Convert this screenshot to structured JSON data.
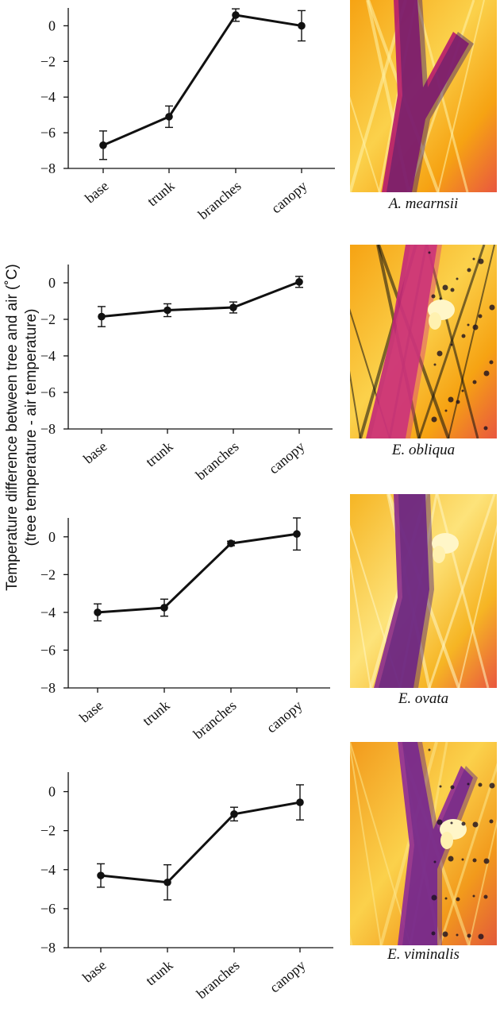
{
  "figure": {
    "ylabel_line1": "Temperature difference between tree and air (˚C)",
    "ylabel_line2": "(tree temperature - air temperature)"
  },
  "chart_data": [
    {
      "type": "line",
      "species": "A. mearnsii",
      "categories": [
        "base",
        "trunk",
        "branches",
        "canopy"
      ],
      "values": [
        -6.7,
        -5.1,
        0.6,
        0.0
      ],
      "error": [
        0.8,
        0.6,
        0.35,
        0.85
      ],
      "ylim": [
        -8,
        1
      ],
      "yticks": [
        0,
        -2,
        -4,
        -6,
        -8
      ],
      "series_color": "#111111",
      "thermal_colors": [
        "#f6a313",
        "#fbd14b",
        "#e9573f",
        "#b5196e",
        "#3a1a6e",
        "#fff3a8"
      ]
    },
    {
      "type": "line",
      "species": "E. obliqua",
      "categories": [
        "base",
        "trunk",
        "branches",
        "canopy"
      ],
      "values": [
        -1.85,
        -1.5,
        -1.35,
        0.05
      ],
      "error": [
        0.55,
        0.35,
        0.3,
        0.3
      ],
      "ylim": [
        -8,
        1
      ],
      "yticks": [
        0,
        -2,
        -4,
        -6,
        -8
      ],
      "series_color": "#111111",
      "thermal_colors": [
        "#f6a313",
        "#fbd14b",
        "#e9573f",
        "#c2287a",
        "#d8407a",
        "#111111"
      ]
    },
    {
      "type": "line",
      "species": "E. ovata",
      "categories": [
        "base",
        "trunk",
        "branches",
        "canopy"
      ],
      "values": [
        -4.0,
        -3.75,
        -0.35,
        0.15
      ],
      "error": [
        0.45,
        0.45,
        0.12,
        0.85
      ],
      "ylim": [
        -8,
        1
      ],
      "yticks": [
        0,
        -2,
        -4,
        -6,
        -8
      ],
      "series_color": "#111111",
      "thermal_colors": [
        "#f6b524",
        "#fde37a",
        "#e9573f",
        "#8a2a8e",
        "#4a2078",
        "#fff6c2"
      ]
    },
    {
      "type": "line",
      "species": "E. viminalis",
      "categories": [
        "base",
        "trunk",
        "branches",
        "canopy"
      ],
      "values": [
        -4.3,
        -4.65,
        -1.15,
        -0.55
      ],
      "error": [
        0.6,
        0.9,
        0.35,
        0.9
      ],
      "ylim": [
        -8,
        1
      ],
      "yticks": [
        0,
        -2,
        -4,
        -6,
        -8
      ],
      "series_color": "#111111",
      "thermal_colors": [
        "#f29a1c",
        "#fbd14b",
        "#e35a3a",
        "#8e2a96",
        "#5a2486",
        "#fde68a"
      ]
    }
  ]
}
